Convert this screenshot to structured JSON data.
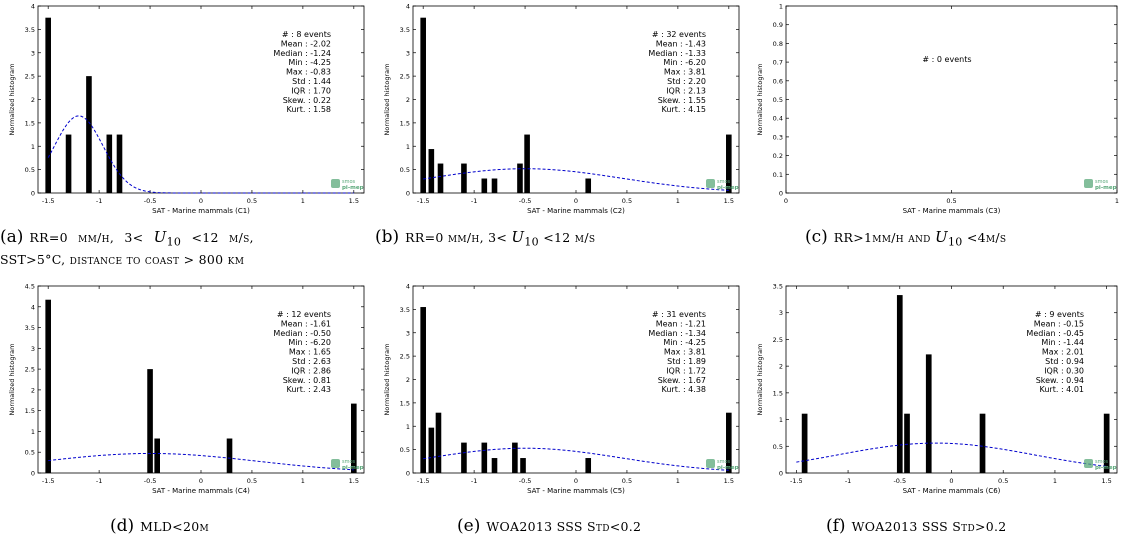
{
  "chart_data": [
    {
      "type": "bar",
      "id": "C1",
      "xlabel": "SAT - Marine mammals (C1)",
      "ylabel": "Normalized histogram",
      "xlim": [
        -1.6,
        1.6
      ],
      "ylim": [
        0,
        4
      ],
      "xticks": [
        "-1.5",
        "-1",
        "-0.5",
        "0",
        "0.5",
        "1",
        "1.5"
      ],
      "yticks": [
        "0",
        "0.5",
        "1",
        "1.5",
        "2",
        "2.5",
        "3",
        "3.5",
        "4"
      ],
      "bins": [
        {
          "x": -1.5,
          "y": 3.75
        },
        {
          "x": -1.3,
          "y": 1.25
        },
        {
          "x": -1.1,
          "y": 2.5
        },
        {
          "x": -0.9,
          "y": 1.25
        },
        {
          "x": -0.8,
          "y": 1.25
        }
      ],
      "fit": {
        "mean": -1.2,
        "sigma": 0.24,
        "scale": 1.65
      },
      "stats": [
        "# : 8 events",
        "Mean : -2.02",
        "Median : -1.24",
        "Min : -4.25",
        "Max : -0.83",
        "Std : 1.44",
        "IQR : 1.70",
        "Skew. : 0.22",
        "Kurt. : 1.58"
      ],
      "logo": [
        "smos",
        "pi-mep"
      ],
      "grid": false
    },
    {
      "type": "bar",
      "id": "C2",
      "xlabel": "SAT - Marine mammals (C2)",
      "ylabel": "Normalized histogram",
      "xlim": [
        -1.6,
        1.6
      ],
      "ylim": [
        0,
        4
      ],
      "xticks": [
        "-1.5",
        "-1",
        "-0.5",
        "0",
        "0.5",
        "1",
        "1.5"
      ],
      "yticks": [
        "0",
        "0.5",
        "1",
        "1.5",
        "2",
        "2.5",
        "3",
        "3.5",
        "4"
      ],
      "bins": [
        {
          "x": -1.5,
          "y": 3.75
        },
        {
          "x": -1.42,
          "y": 0.94
        },
        {
          "x": -1.33,
          "y": 0.63
        },
        {
          "x": -1.1,
          "y": 0.63
        },
        {
          "x": -0.9,
          "y": 0.31
        },
        {
          "x": -0.8,
          "y": 0.31
        },
        {
          "x": -0.55,
          "y": 0.63
        },
        {
          "x": -0.48,
          "y": 1.25
        },
        {
          "x": 0.12,
          "y": 0.31
        },
        {
          "x": 1.5,
          "y": 1.25
        }
      ],
      "fit": {
        "mean": -0.5,
        "sigma": 0.95,
        "scale": 0.52
      },
      "stats": [
        "# : 32 events",
        "Mean : -1.43",
        "Median : -1.33",
        "Min : -6.20",
        "Max : 3.81",
        "Std : 2.20",
        "IQR : 2.13",
        "Skew. : 1.55",
        "Kurt. : 4.15"
      ],
      "logo": [
        "smos",
        "pi-mep"
      ],
      "grid": false
    },
    {
      "type": "bar",
      "id": "C3",
      "xlabel": "SAT - Marine mammals (C3)",
      "ylabel": "Normalized histogram",
      "xlim": [
        0,
        1
      ],
      "ylim": [
        0,
        1
      ],
      "xticks": [
        "0",
        "0.5",
        "1"
      ],
      "yticks": [
        "0",
        "0.1",
        "0.2",
        "0.3",
        "0.4",
        "0.5",
        "0.6",
        "0.7",
        "0.8",
        "0.9",
        "1"
      ],
      "bins": [],
      "fit": null,
      "stats": [
        "# : 0 events"
      ],
      "logo": [
        "smos",
        "pi-mep"
      ],
      "grid": false
    },
    {
      "type": "bar",
      "id": "C4",
      "xlabel": "SAT - Marine mammals (C4)",
      "ylabel": "Normalized histogram",
      "xlim": [
        -1.6,
        1.6
      ],
      "ylim": [
        0,
        4.5
      ],
      "xticks": [
        "-1.5",
        "-1",
        "-0.5",
        "0",
        "0.5",
        "1",
        "1.5"
      ],
      "yticks": [
        "0",
        "0.5",
        "1",
        "1.5",
        "2",
        "2.5",
        "3",
        "3.5",
        "4",
        "4.5"
      ],
      "bins": [
        {
          "x": -1.5,
          "y": 4.17
        },
        {
          "x": -0.5,
          "y": 2.5
        },
        {
          "x": -0.43,
          "y": 0.83
        },
        {
          "x": 0.28,
          "y": 0.83
        },
        {
          "x": 1.5,
          "y": 1.67
        }
      ],
      "fit": {
        "mean": -0.5,
        "sigma": 1.05,
        "scale": 0.47
      },
      "stats": [
        "# : 12 events",
        "Mean : -1.61",
        "Median : -0.50",
        "Min : -6.20",
        "Max : 1.65",
        "Std : 2.63",
        "IQR : 2.86",
        "Skew. : 0.81",
        "Kurt. : 2.43"
      ],
      "logo": [
        "smos",
        "pi-mep"
      ],
      "grid": false
    },
    {
      "type": "bar",
      "id": "C5",
      "xlabel": "SAT - Marine mammals (C5)",
      "ylabel": "Normalized histogram",
      "xlim": [
        -1.6,
        1.6
      ],
      "ylim": [
        0,
        4
      ],
      "xticks": [
        "-1.5",
        "-1",
        "-0.5",
        "0",
        "0.5",
        "1",
        "1.5"
      ],
      "yticks": [
        "0",
        "0.5",
        "1",
        "1.5",
        "2",
        "2.5",
        "3",
        "3.5",
        "4"
      ],
      "bins": [
        {
          "x": -1.5,
          "y": 3.55
        },
        {
          "x": -1.42,
          "y": 0.97
        },
        {
          "x": -1.35,
          "y": 1.29
        },
        {
          "x": -1.1,
          "y": 0.65
        },
        {
          "x": -0.9,
          "y": 0.65
        },
        {
          "x": -0.8,
          "y": 0.32
        },
        {
          "x": -0.6,
          "y": 0.65
        },
        {
          "x": -0.52,
          "y": 0.32
        },
        {
          "x": 0.12,
          "y": 0.32
        },
        {
          "x": 1.5,
          "y": 1.29
        }
      ],
      "fit": {
        "mean": -0.5,
        "sigma": 0.95,
        "scale": 0.53
      },
      "stats": [
        "# : 31 events",
        "Mean : -1.21",
        "Median : -1.34",
        "Min : -4.25",
        "Max : 3.81",
        "Std : 1.89",
        "IQR : 1.72",
        "Skew. : 1.67",
        "Kurt. : 4.38"
      ],
      "logo": [
        "smos",
        "pi-mep"
      ],
      "grid": false
    },
    {
      "type": "bar",
      "id": "C6",
      "xlabel": "SAT - Marine mammals (C6)",
      "ylabel": "Normalized histogram",
      "xlim": [
        -1.6,
        1.6
      ],
      "ylim": [
        0,
        3.5
      ],
      "xticks": [
        "-1.5",
        "-1",
        "-0.5",
        "0",
        "0.5",
        "1",
        "1.5"
      ],
      "yticks": [
        "0",
        "0.5",
        "1",
        "1.5",
        "2",
        "2.5",
        "3",
        "3.5"
      ],
      "bins": [
        {
          "x": -1.42,
          "y": 1.11
        },
        {
          "x": -0.5,
          "y": 3.33
        },
        {
          "x": -0.43,
          "y": 1.11
        },
        {
          "x": -0.22,
          "y": 2.22
        },
        {
          "x": 0.3,
          "y": 1.11
        },
        {
          "x": 1.5,
          "y": 1.11
        }
      ],
      "fit": {
        "mean": -0.15,
        "sigma": 0.95,
        "scale": 0.56
      },
      "stats": [
        "# : 9 events",
        "Mean : -0.15",
        "Median : -0.45",
        "Min : -1.44",
        "Max : 2.01",
        "Std : 0.94",
        "IQR : 0.30",
        "Skew. : 0.94",
        "Kurt. : 4.01"
      ],
      "logo": [
        "smos",
        "pi-mep"
      ],
      "grid": false
    }
  ],
  "captions": [
    {
      "label": "(a)",
      "lines": [
        "RR=0  mm/h,  3<  U10  <12  m/s,",
        "SST>5°C, distance to coast > 800 km"
      ]
    },
    {
      "label": "(b)",
      "lines": [
        "RR=0 mm/h, 3< U10 <12 m/s"
      ]
    },
    {
      "label": "(c)",
      "lines": [
        "RR>1mm/h and U10 <4m/s"
      ]
    },
    {
      "label": "(d)",
      "lines": [
        "MLD<20m"
      ]
    },
    {
      "label": "(e)",
      "lines": [
        "WOA2013 SSS Std<0.2"
      ]
    },
    {
      "label": "(f)",
      "lines": [
        "WOA2013 SSS Std>0.2"
      ]
    }
  ],
  "colors": {
    "bar": "#000000",
    "fit": "#0000cc",
    "axis": "#000000",
    "logo": "#5aa87a"
  }
}
